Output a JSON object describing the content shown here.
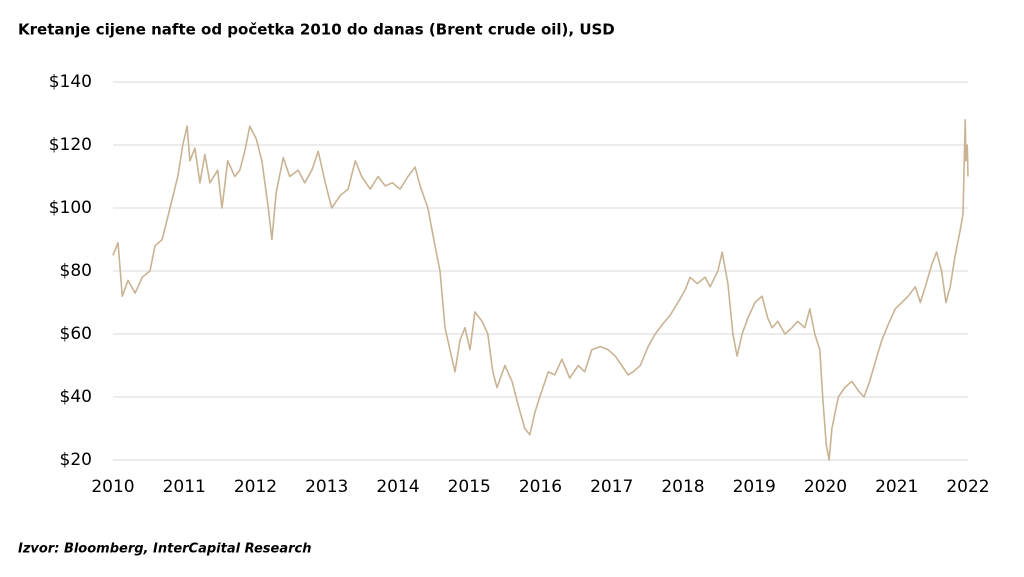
{
  "chart_data": {
    "type": "line",
    "title": "Kretanje cijene nafte od početka 2010 do danas (Brent crude oil), USD",
    "source": "Izvor: Bloomberg, InterCapital Research",
    "x": [
      2010.0,
      2010.07,
      2010.13,
      2010.21,
      2010.31,
      2010.41,
      2010.52,
      2010.59,
      2010.69,
      2010.8,
      2010.91,
      2010.98,
      2011.04,
      2011.08,
      2011.15,
      2011.22,
      2011.29,
      2011.36,
      2011.47,
      2011.53,
      2011.61,
      2011.71,
      2011.78,
      2011.85,
      2011.92,
      2012.01,
      2012.09,
      2012.18,
      2012.23,
      2012.29,
      2012.39,
      2012.48,
      2012.6,
      2012.69,
      2012.79,
      2012.88,
      2012.98,
      2013.07,
      2013.19,
      2013.3,
      2013.4,
      2013.49,
      2013.61,
      2013.72,
      2013.82,
      2013.92,
      2014.03,
      2014.14,
      2014.24,
      2014.31,
      2014.42,
      2014.52,
      2014.59,
      2014.66,
      2014.73,
      2014.8,
      2014.87,
      2014.94,
      2015.01,
      2015.08,
      2015.18,
      2015.26,
      2015.33,
      2015.39,
      2015.5,
      2015.6,
      2015.68,
      2015.78,
      2015.85,
      2015.92,
      2015.99,
      2016.11,
      2016.2,
      2016.3,
      2016.41,
      2016.53,
      2016.62,
      2016.72,
      2016.84,
      2016.95,
      2017.05,
      2017.14,
      2017.23,
      2017.3,
      2017.4,
      2017.51,
      2017.61,
      2017.71,
      2017.82,
      2017.93,
      2018.03,
      2018.1,
      2018.2,
      2018.31,
      2018.38,
      2018.49,
      2018.55,
      2018.63,
      2018.7,
      2018.76,
      2018.83,
      2018.91,
      2019.01,
      2019.11,
      2019.19,
      2019.25,
      2019.33,
      2019.43,
      2019.53,
      2019.61,
      2019.71,
      2019.78,
      2019.85,
      2019.92,
      2019.96,
      2020.01,
      2020.05,
      2020.09,
      2020.18,
      2020.27,
      2020.37,
      2020.46,
      2020.54,
      2020.62,
      2020.71,
      2020.79,
      2020.88,
      2020.98,
      2021.07,
      2021.16,
      2021.26,
      2021.33,
      2021.4,
      2021.49,
      2021.56,
      2021.63,
      2021.69,
      2021.75,
      2021.82,
      2021.89,
      2021.93,
      2021.96,
      2021.97,
      2021.99,
      2022.0
    ],
    "series": [
      {
        "color": "#c9b393",
        "values": [
          85,
          89,
          72,
          77,
          73,
          78,
          80,
          88,
          90,
          100,
          110,
          120,
          126,
          115,
          119,
          108,
          117,
          108,
          112,
          100,
          115,
          110,
          112,
          118,
          126,
          122,
          115,
          100,
          90,
          105,
          116,
          110,
          112,
          108,
          112,
          118,
          108,
          100,
          104,
          106,
          115,
          110,
          106,
          110,
          107,
          108,
          106,
          110,
          113,
          107,
          100,
          88,
          80,
          62,
          55,
          48,
          58,
          62,
          55,
          67,
          64,
          60,
          48,
          43,
          50,
          45,
          38,
          30,
          28,
          35,
          40,
          48,
          47,
          52,
          46,
          50,
          48,
          55,
          56,
          55,
          53,
          50,
          47,
          48,
          50,
          56,
          60,
          63,
          66,
          70,
          74,
          78,
          76,
          78,
          75,
          80,
          86,
          76,
          60,
          53,
          60,
          65,
          70,
          72,
          65,
          62,
          64,
          60,
          62,
          64,
          62,
          68,
          60,
          55,
          40,
          25,
          20,
          30,
          40,
          43,
          45,
          42,
          40,
          45,
          52,
          58,
          63,
          68,
          70,
          72,
          75,
          70,
          75,
          82,
          86,
          80,
          70,
          75,
          85,
          93,
          98,
          128,
          115,
          120,
          110
        ]
      }
    ],
    "xlim": [
      2010,
      2022
    ],
    "xticks": [
      2010,
      2011,
      2012,
      2013,
      2014,
      2015,
      2016,
      2017,
      2018,
      2019,
      2020,
      2021,
      2022
    ],
    "ylim": [
      20,
      140
    ],
    "yticks": [
      {
        "value": 20,
        "label": "$20"
      },
      {
        "value": 40,
        "label": "$40"
      },
      {
        "value": 60,
        "label": "$60"
      },
      {
        "value": 80,
        "label": "$80"
      },
      {
        "value": 100,
        "label": "$100"
      },
      {
        "value": 120,
        "label": "$120"
      },
      {
        "value": 140,
        "label": "$140"
      }
    ],
    "grid": true
  }
}
